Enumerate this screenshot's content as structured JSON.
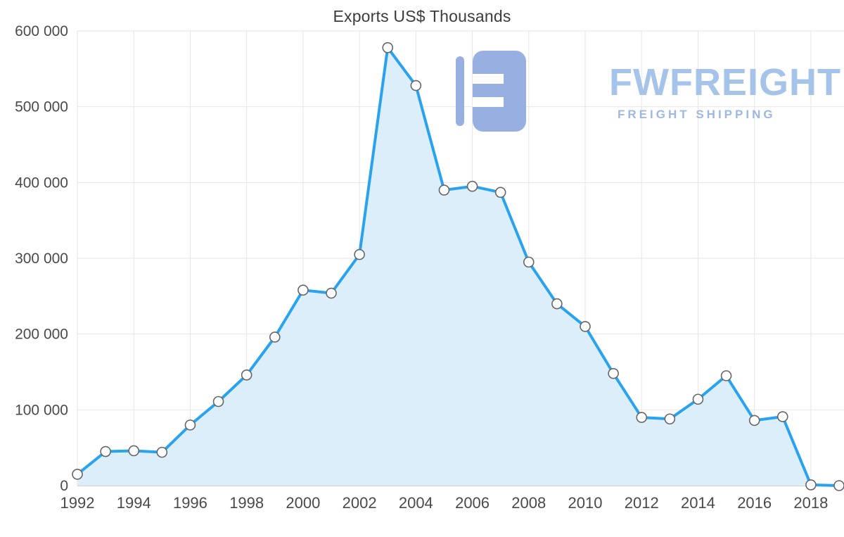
{
  "watermark": {
    "brand": "FWFREIGHT",
    "tagline": "FREIGHT SHIPPING",
    "logo_color": "#8da8de"
  },
  "colors": {
    "line": "#2aa3ef",
    "area_fill": "#ddeefb",
    "marker_fill": "#ffffff",
    "marker_stroke": "#666666",
    "gridline": "#e6e6e6",
    "baseline": "#c2c2c2",
    "tick_label": "#4a4a4a",
    "title": "#3c3c3c"
  },
  "chart_data": {
    "type": "area",
    "title": "Exports US$ Thousands",
    "xlabel": "",
    "ylabel": "",
    "x": [
      1992,
      1993,
      1994,
      1995,
      1996,
      1997,
      1998,
      1999,
      2000,
      2001,
      2002,
      2003,
      2004,
      2005,
      2006,
      2007,
      2008,
      2009,
      2010,
      2011,
      2012,
      2013,
      2014,
      2015,
      2016,
      2017,
      2018,
      2019
    ],
    "values": [
      15000,
      45000,
      46000,
      44000,
      80000,
      111000,
      146000,
      196000,
      258000,
      254000,
      305000,
      578000,
      528000,
      390000,
      395000,
      387000,
      295000,
      240000,
      210000,
      148000,
      90000,
      88000,
      114000,
      145000,
      86000,
      91000,
      1000,
      0
    ],
    "ylim": [
      0,
      600000
    ],
    "y_ticks": [
      0,
      100000,
      200000,
      300000,
      400000,
      500000,
      600000
    ],
    "y_tick_labels": [
      "0",
      "100 000",
      "200 000",
      "300 000",
      "400 000",
      "500 000",
      "600 000"
    ],
    "x_ticks": [
      1992,
      1994,
      1996,
      1998,
      2000,
      2002,
      2004,
      2006,
      2008,
      2010,
      2012,
      2014,
      2016,
      2018
    ],
    "grid": true,
    "legend_position": "none",
    "marker": "circle"
  }
}
